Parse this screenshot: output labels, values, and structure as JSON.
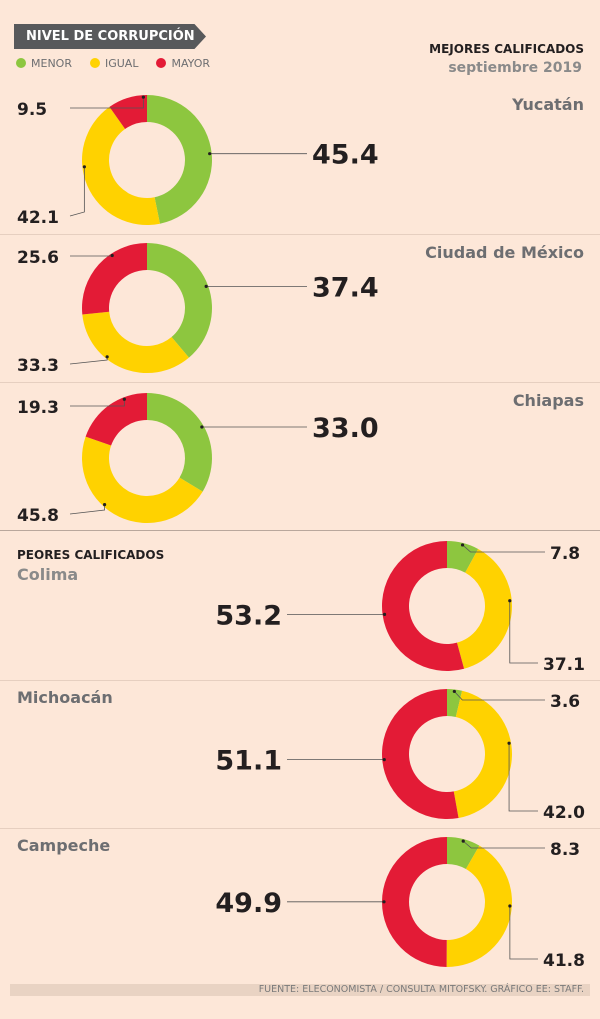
{
  "header": {
    "tag": "NIVEL DE CORRUPCIÓN",
    "best_title": "MEJORES CALIFICADOS",
    "date": "septiembre 2019",
    "worst_title": "PEORES CALIFICADOS"
  },
  "legend": [
    {
      "label": "MENOR",
      "color": "#8dc63f"
    },
    {
      "label": "IGUAL",
      "color": "#ffd200"
    },
    {
      "label": "MAYOR",
      "color": "#e31b36"
    }
  ],
  "chart_data": {
    "type": "pie",
    "series_order": [
      "MENOR",
      "IGUAL",
      "MAYOR"
    ],
    "charts": [
      {
        "state": "Yucatán",
        "group": "MEJORES CALIFICADOS",
        "values": {
          "MENOR": 45.4,
          "IGUAL": 42.1,
          "MAYOR": 9.5
        },
        "highlight": "MENOR"
      },
      {
        "state": "Ciudad de México",
        "group": "MEJORES CALIFICADOS",
        "values": {
          "MENOR": 37.4,
          "IGUAL": 33.3,
          "MAYOR": 25.6
        },
        "highlight": "MENOR"
      },
      {
        "state": "Chiapas",
        "group": "MEJORES CALIFICADOS",
        "values": {
          "MENOR": 33.0,
          "IGUAL": 45.8,
          "MAYOR": 19.3
        },
        "highlight": "MENOR"
      },
      {
        "state": "Colima",
        "group": "PEORES CALIFICADOS",
        "values": {
          "MENOR": 7.8,
          "IGUAL": 37.1,
          "MAYOR": 53.2
        },
        "highlight": "MAYOR"
      },
      {
        "state": "Michoacán",
        "group": "PEORES CALIFICADOS",
        "values": {
          "MENOR": 3.6,
          "IGUAL": 42.0,
          "MAYOR": 51.1
        },
        "highlight": "MAYOR"
      },
      {
        "state": "Campeche",
        "group": "PEORES CALIFICADOS",
        "values": {
          "MENOR": 8.3,
          "IGUAL": 41.8,
          "MAYOR": 49.9
        },
        "highlight": "MAYOR"
      }
    ],
    "labels": {
      "0": {
        "MENOR": "45.4",
        "IGUAL": "42.1",
        "MAYOR": "9.5"
      },
      "1": {
        "MENOR": "37.4",
        "IGUAL": "33.3",
        "MAYOR": "25.6"
      },
      "2": {
        "MENOR": "33.0",
        "IGUAL": "45.8",
        "MAYOR": "19.3"
      },
      "3": {
        "MENOR": "7.8",
        "IGUAL": "37.1",
        "MAYOR": "53.2"
      },
      "4": {
        "MENOR": "3.6",
        "IGUAL": "42.0",
        "MAYOR": "51.1"
      },
      "5": {
        "MENOR": "8.3",
        "IGUAL": "41.8",
        "MAYOR": "49.9"
      }
    }
  },
  "footer": "FUENTE: ELECONOMISTA / CONSULTA MITOFSKY. GRÁFICO EE: STAFF."
}
